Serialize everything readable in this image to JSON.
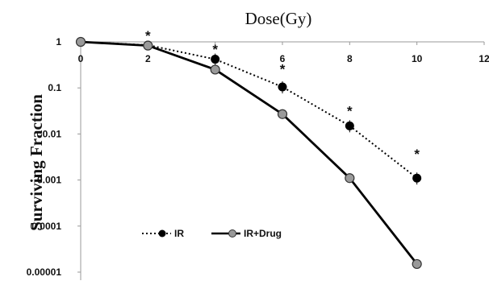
{
  "chart_data": {
    "type": "line",
    "title": "Dose(Gy)",
    "xlabel": "",
    "ylabel": "Surviving Fraction",
    "xscale": "linear",
    "yscale": "log",
    "xlim": [
      0,
      12
    ],
    "ylim": [
      1e-05,
      1
    ],
    "x_ticks": [
      "0",
      "2",
      "4",
      "6",
      "8",
      "10",
      "12"
    ],
    "y_ticks": [
      "1",
      "0.1",
      "0.01",
      "0.001",
      "0.0001",
      "0.00001"
    ],
    "x_axis_position": "top",
    "grid": false,
    "legend_position": "bottom-left",
    "series": [
      {
        "name": "IR",
        "line_style": "dotted",
        "marker_color": "#000000",
        "x": [
          0,
          2,
          4,
          6,
          8,
          10
        ],
        "y": [
          1.0,
          0.85,
          0.42,
          0.105,
          0.015,
          0.0011
        ]
      },
      {
        "name": "IR+Drug",
        "line_style": "solid",
        "marker_color": "#9a9a9a",
        "x": [
          0,
          2,
          4,
          6,
          8,
          10
        ],
        "y": [
          1.0,
          0.83,
          0.25,
          0.027,
          0.0011,
          1.5e-05
        ]
      }
    ],
    "annotations": [
      {
        "text": "*",
        "x": 2,
        "y": 1.5
      },
      {
        "text": "*",
        "x": 4,
        "y": 0.75
      },
      {
        "text": "*",
        "x": 6,
        "y": 0.28
      },
      {
        "text": "*",
        "x": 8,
        "y": 0.035
      },
      {
        "text": "*",
        "x": 10,
        "y": 0.004
      }
    ]
  }
}
